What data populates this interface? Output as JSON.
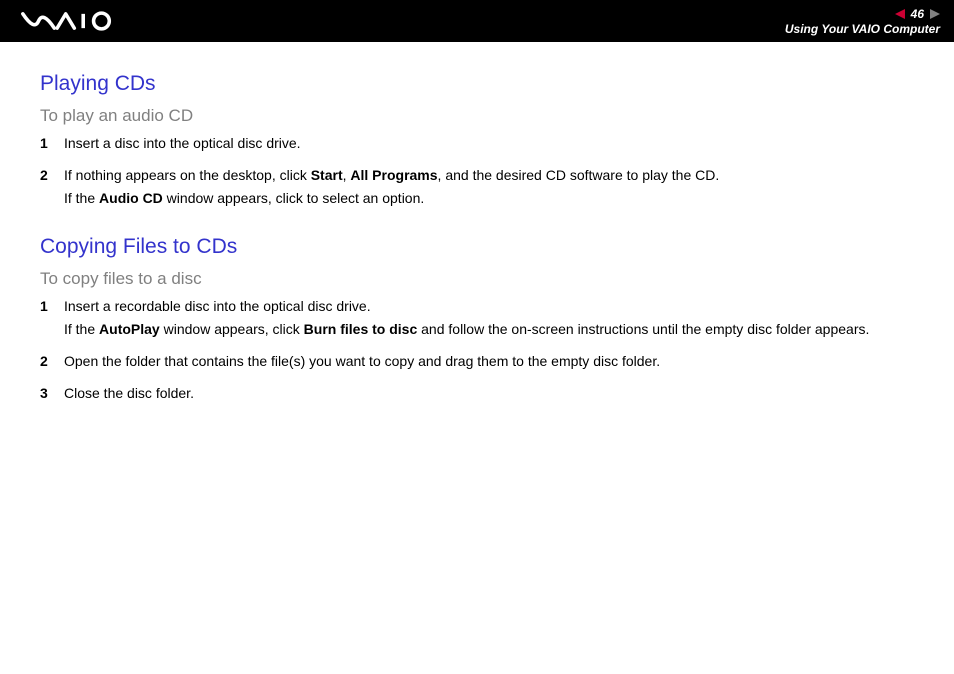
{
  "header": {
    "page_number": "46",
    "section": "Using Your VAIO Computer",
    "nav_prev_color": "#cc0033",
    "nav_next_color": "#808080",
    "bg_color": "#000000",
    "text_color": "#ffffff"
  },
  "colors": {
    "heading_blue": "#3333cc",
    "subheading_gray": "#808080",
    "body_text": "#000000"
  },
  "sections": [
    {
      "title": "Playing CDs",
      "subtitle": "To play an audio CD",
      "steps": [
        {
          "num": "1",
          "lines": [
            {
              "segments": [
                {
                  "t": "Insert a disc into the optical disc drive."
                }
              ]
            }
          ]
        },
        {
          "num": "2",
          "lines": [
            {
              "segments": [
                {
                  "t": "If nothing appears on the desktop, click "
                },
                {
                  "t": "Start",
                  "b": true
                },
                {
                  "t": ", "
                },
                {
                  "t": "All Programs",
                  "b": true
                },
                {
                  "t": ", and the desired CD software to play the CD."
                }
              ]
            },
            {
              "segments": [
                {
                  "t": "If the "
                },
                {
                  "t": "Audio CD",
                  "b": true
                },
                {
                  "t": " window appears, click to select an option."
                }
              ]
            }
          ]
        }
      ]
    },
    {
      "title": "Copying Files to CDs",
      "subtitle": "To copy files to a disc",
      "steps": [
        {
          "num": "1",
          "lines": [
            {
              "segments": [
                {
                  "t": "Insert a recordable disc into the optical disc drive."
                }
              ]
            },
            {
              "segments": [
                {
                  "t": "If the "
                },
                {
                  "t": "AutoPlay",
                  "b": true
                },
                {
                  "t": " window appears, click "
                },
                {
                  "t": "Burn files to disc",
                  "b": true
                },
                {
                  "t": " and follow the on-screen instructions until the empty disc folder appears."
                }
              ]
            }
          ]
        },
        {
          "num": "2",
          "lines": [
            {
              "segments": [
                {
                  "t": "Open the folder that contains the file(s) you want to copy and drag them to the empty disc folder."
                }
              ]
            }
          ]
        },
        {
          "num": "3",
          "lines": [
            {
              "segments": [
                {
                  "t": "Close the disc folder."
                }
              ]
            }
          ]
        }
      ]
    }
  ]
}
